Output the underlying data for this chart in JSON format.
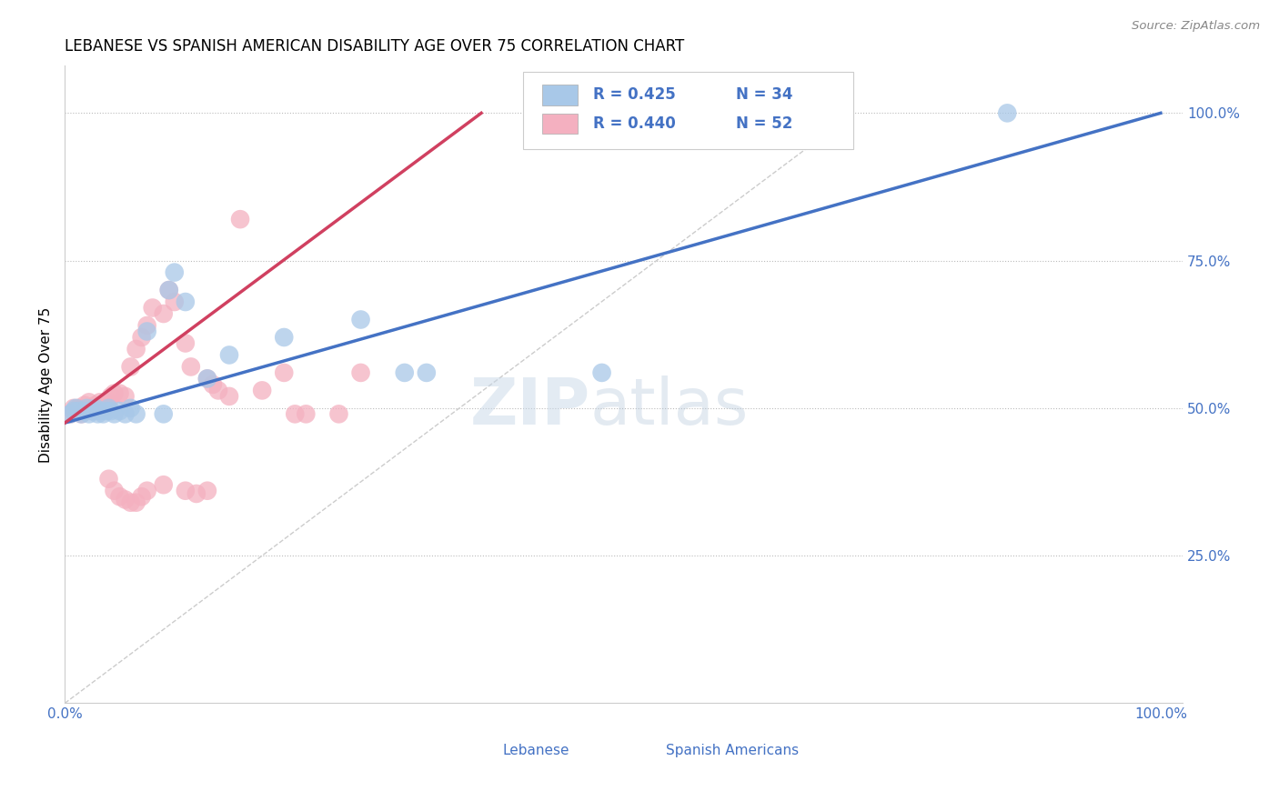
{
  "title": "LEBANESE VS SPANISH AMERICAN DISABILITY AGE OVER 75 CORRELATION CHART",
  "source": "Source: ZipAtlas.com",
  "ylabel": "Disability Age Over 75",
  "watermark_zip": "ZIP",
  "watermark_atlas": "atlas",
  "legend_blue_R": "R = 0.425",
  "legend_blue_N": "N = 34",
  "legend_pink_R": "R = 0.440",
  "legend_pink_N": "N = 52",
  "blue_color": "#a8c8e8",
  "pink_color": "#f4b0c0",
  "trendline_blue": "#4472c4",
  "trendline_pink": "#d04060",
  "axis_label_color": "#4472c4",
  "blue_x": [
    0.005,
    0.008,
    0.01,
    0.012,
    0.015,
    0.018,
    0.02,
    0.022,
    0.025,
    0.028,
    0.03,
    0.032,
    0.035,
    0.038,
    0.04,
    0.042,
    0.045,
    0.05,
    0.055,
    0.06,
    0.065,
    0.075,
    0.09,
    0.095,
    0.1,
    0.11,
    0.13,
    0.15,
    0.2,
    0.27,
    0.31,
    0.33,
    0.49,
    0.86
  ],
  "blue_y": [
    0.49,
    0.495,
    0.5,
    0.495,
    0.49,
    0.495,
    0.5,
    0.49,
    0.495,
    0.5,
    0.49,
    0.495,
    0.49,
    0.495,
    0.5,
    0.495,
    0.49,
    0.495,
    0.49,
    0.5,
    0.49,
    0.63,
    0.49,
    0.7,
    0.73,
    0.68,
    0.55,
    0.59,
    0.62,
    0.65,
    0.56,
    0.56,
    0.56,
    1.0
  ],
  "pink_x": [
    0.005,
    0.008,
    0.01,
    0.012,
    0.015,
    0.018,
    0.02,
    0.022,
    0.025,
    0.028,
    0.03,
    0.032,
    0.035,
    0.038,
    0.04,
    0.042,
    0.045,
    0.05,
    0.055,
    0.06,
    0.065,
    0.07,
    0.075,
    0.08,
    0.09,
    0.095,
    0.1,
    0.11,
    0.115,
    0.13,
    0.135,
    0.14,
    0.15,
    0.16,
    0.18,
    0.2,
    0.21,
    0.22,
    0.25,
    0.27,
    0.04,
    0.045,
    0.05,
    0.055,
    0.06,
    0.065,
    0.07,
    0.075,
    0.09,
    0.11,
    0.12,
    0.13
  ],
  "pink_y": [
    0.49,
    0.5,
    0.495,
    0.5,
    0.49,
    0.505,
    0.495,
    0.51,
    0.495,
    0.505,
    0.5,
    0.51,
    0.5,
    0.51,
    0.51,
    0.52,
    0.525,
    0.525,
    0.52,
    0.57,
    0.6,
    0.62,
    0.64,
    0.67,
    0.66,
    0.7,
    0.68,
    0.61,
    0.57,
    0.55,
    0.54,
    0.53,
    0.52,
    0.82,
    0.53,
    0.56,
    0.49,
    0.49,
    0.49,
    0.56,
    0.38,
    0.36,
    0.35,
    0.345,
    0.34,
    0.34,
    0.35,
    0.36,
    0.37,
    0.36,
    0.355,
    0.36
  ],
  "trendline_blue_x0": 0.0,
  "trendline_blue_y0": 0.475,
  "trendline_blue_x1": 1.0,
  "trendline_blue_y1": 1.0,
  "trendline_pink_x0": 0.0,
  "trendline_pink_y0": 0.475,
  "trendline_pink_x1": 0.38,
  "trendline_pink_y1": 1.0,
  "refline_x0": 0.0,
  "refline_y0": 0.0,
  "refline_x1": 0.72,
  "refline_y1": 1.0,
  "xlim": [
    0.0,
    1.02
  ],
  "ylim": [
    0.0,
    1.08
  ],
  "ytick_positions": [
    0.25,
    0.5,
    0.75,
    1.0
  ],
  "ytick_labels": [
    "25.0%",
    "50.0%",
    "75.0%",
    "100.0%"
  ]
}
